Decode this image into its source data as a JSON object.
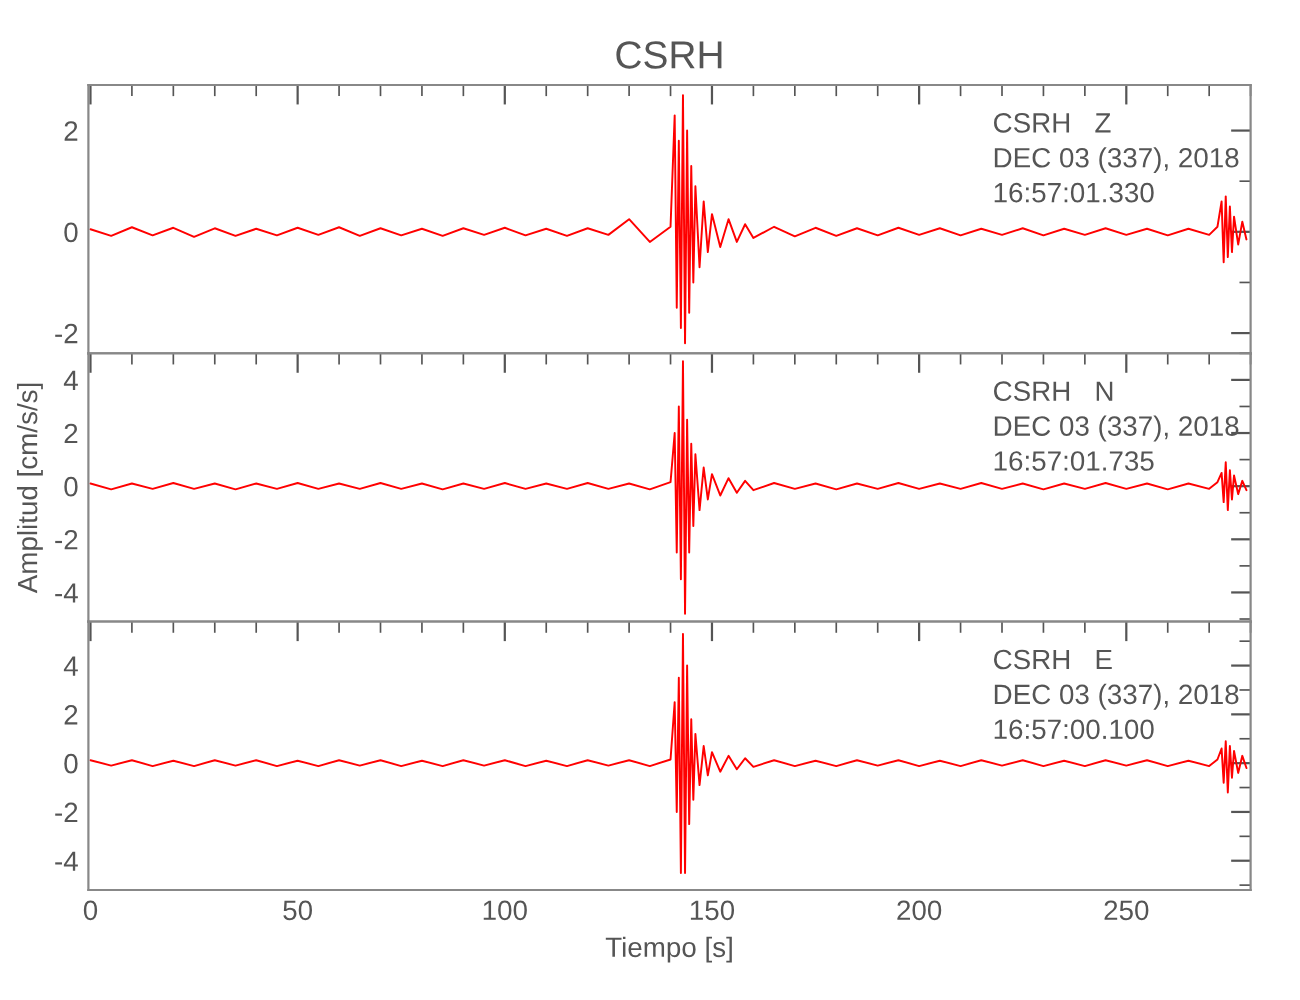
{
  "chart_data": [
    {
      "type": "line",
      "title": "CSRH",
      "xlim": [
        -0.5,
        280
      ],
      "xticks": [
        0,
        50,
        100,
        150,
        200,
        250
      ],
      "ylim": [
        -2.4,
        2.9
      ],
      "yticks": [
        -2,
        0,
        2
      ],
      "tick_labels": "y",
      "annotations": [
        "CSRH   Z",
        "DEC 03 (337), 2018",
        "16:57:01.330"
      ],
      "x": [
        0,
        5,
        10,
        15,
        20,
        25,
        30,
        35,
        40,
        45,
        50,
        55,
        60,
        65,
        70,
        75,
        80,
        85,
        90,
        95,
        100,
        105,
        110,
        115,
        120,
        125,
        130,
        135,
        140,
        141,
        141.5,
        142,
        142.5,
        143,
        143.5,
        144,
        144.5,
        145,
        145.5,
        146,
        147,
        148,
        149,
        150,
        152,
        154,
        156,
        158,
        160,
        165,
        170,
        175,
        180,
        185,
        190,
        195,
        200,
        205,
        210,
        215,
        220,
        225,
        230,
        235,
        240,
        245,
        250,
        255,
        260,
        265,
        270,
        272,
        273,
        273.5,
        274,
        274.5,
        275,
        275.5,
        276,
        277,
        278,
        279
      ],
      "series": [
        {
          "color": "#ff0000",
          "values": [
            0.05,
            -0.08,
            0.09,
            -0.07,
            0.08,
            -0.1,
            0.07,
            -0.08,
            0.06,
            -0.07,
            0.08,
            -0.06,
            0.09,
            -0.08,
            0.07,
            -0.07,
            0.06,
            -0.08,
            0.07,
            -0.06,
            0.08,
            -0.07,
            0.06,
            -0.08,
            0.07,
            -0.06,
            0.25,
            -0.2,
            0.1,
            2.3,
            -1.5,
            1.8,
            -1.9,
            2.7,
            -2.2,
            2.0,
            -1.6,
            1.3,
            -1.0,
            0.9,
            -0.7,
            0.6,
            -0.4,
            0.35,
            -0.3,
            0.25,
            -0.2,
            0.15,
            -0.12,
            0.1,
            -0.09,
            0.08,
            -0.08,
            0.07,
            -0.07,
            0.08,
            -0.06,
            0.07,
            -0.07,
            0.06,
            -0.06,
            0.07,
            -0.07,
            0.06,
            -0.06,
            0.07,
            -0.06,
            0.06,
            -0.07,
            0.06,
            -0.06,
            0.1,
            0.6,
            -0.6,
            0.7,
            -0.5,
            0.5,
            -0.4,
            0.3,
            -0.25,
            0.2,
            -0.15
          ]
        }
      ]
    },
    {
      "type": "line",
      "ylabel": "Amplitud [cm/s/s]",
      "xlim": [
        -0.5,
        280
      ],
      "xticks": [
        0,
        50,
        100,
        150,
        200,
        250
      ],
      "ylim": [
        -5.1,
        5.0
      ],
      "yticks": [
        -4,
        -2,
        0,
        2,
        4
      ],
      "tick_labels": "y",
      "annotations": [
        "CSRH   N",
        "DEC 03 (337), 2018",
        "16:57:01.735"
      ],
      "x": [
        0,
        5,
        10,
        15,
        20,
        25,
        30,
        35,
        40,
        45,
        50,
        55,
        60,
        65,
        70,
        75,
        80,
        85,
        90,
        95,
        100,
        105,
        110,
        115,
        120,
        125,
        130,
        135,
        140,
        141,
        141.5,
        142,
        142.5,
        143,
        143.5,
        144,
        144.5,
        145,
        145.5,
        146,
        147,
        148,
        149,
        150,
        152,
        154,
        156,
        158,
        160,
        165,
        170,
        175,
        180,
        185,
        190,
        195,
        200,
        205,
        210,
        215,
        220,
        225,
        230,
        235,
        240,
        245,
        250,
        255,
        260,
        265,
        270,
        272,
        273,
        273.5,
        274,
        274.5,
        275,
        275.5,
        276,
        277,
        278,
        279
      ],
      "series": [
        {
          "color": "#ff0000",
          "values": [
            0.1,
            -0.12,
            0.1,
            -0.1,
            0.12,
            -0.1,
            0.1,
            -0.12,
            0.1,
            -0.1,
            0.12,
            -0.1,
            0.1,
            -0.1,
            0.12,
            -0.1,
            0.1,
            -0.12,
            0.1,
            -0.1,
            0.12,
            -0.1,
            0.1,
            -0.1,
            0.12,
            -0.1,
            0.1,
            -0.12,
            0.15,
            2.0,
            -2.5,
            3.0,
            -3.5,
            4.7,
            -4.8,
            2.5,
            -2.5,
            1.6,
            -1.5,
            1.2,
            -0.9,
            0.7,
            -0.5,
            0.45,
            -0.35,
            0.3,
            -0.25,
            0.2,
            -0.15,
            0.12,
            -0.1,
            0.1,
            -0.12,
            0.1,
            -0.1,
            0.12,
            -0.1,
            0.1,
            -0.1,
            0.12,
            -0.1,
            0.1,
            -0.12,
            0.1,
            -0.1,
            0.12,
            -0.1,
            0.1,
            -0.12,
            0.1,
            -0.1,
            0.15,
            0.5,
            -0.6,
            0.9,
            -0.9,
            0.6,
            -0.5,
            0.4,
            -0.3,
            0.2,
            -0.15
          ]
        }
      ]
    },
    {
      "type": "line",
      "xlabel": "Tiempo [s]",
      "xlim": [
        -0.5,
        280
      ],
      "xticks": [
        0,
        50,
        100,
        150,
        200,
        250
      ],
      "ylim": [
        -5.2,
        5.8
      ],
      "yticks": [
        -4,
        -2,
        0,
        2,
        4
      ],
      "annotations": [
        "CSRH   E",
        "DEC 03 (337), 2018",
        "16:57:00.100"
      ],
      "x": [
        0,
        5,
        10,
        15,
        20,
        25,
        30,
        35,
        40,
        45,
        50,
        55,
        60,
        65,
        70,
        75,
        80,
        85,
        90,
        95,
        100,
        105,
        110,
        115,
        120,
        125,
        130,
        135,
        140,
        141,
        141.5,
        142,
        142.5,
        143,
        143.5,
        144,
        144.5,
        145,
        145.5,
        146,
        147,
        148,
        149,
        150,
        152,
        154,
        156,
        158,
        160,
        165,
        170,
        175,
        180,
        185,
        190,
        195,
        200,
        205,
        210,
        215,
        220,
        225,
        230,
        235,
        240,
        245,
        250,
        255,
        260,
        265,
        270,
        272,
        273,
        273.5,
        274,
        274.5,
        275,
        275.5,
        276,
        277,
        278,
        279
      ],
      "series": [
        {
          "color": "#ff0000",
          "values": [
            0.12,
            -0.1,
            0.12,
            -0.12,
            0.1,
            -0.12,
            0.12,
            -0.1,
            0.12,
            -0.12,
            0.1,
            -0.12,
            0.12,
            -0.1,
            0.12,
            -0.12,
            0.1,
            -0.12,
            0.12,
            -0.1,
            0.12,
            -0.12,
            0.1,
            -0.12,
            0.12,
            -0.1,
            0.12,
            -0.12,
            0.15,
            2.5,
            -2.0,
            3.5,
            -4.5,
            5.3,
            -4.5,
            4.0,
            -2.5,
            1.8,
            -1.5,
            1.2,
            -0.9,
            0.7,
            -0.5,
            0.45,
            -0.35,
            0.3,
            -0.25,
            0.2,
            -0.15,
            0.12,
            -0.12,
            0.1,
            -0.12,
            0.12,
            -0.1,
            0.12,
            -0.12,
            0.1,
            -0.12,
            0.12,
            -0.1,
            0.12,
            -0.12,
            0.1,
            -0.12,
            0.12,
            -0.1,
            0.12,
            -0.12,
            0.1,
            -0.12,
            0.15,
            0.6,
            -0.8,
            0.9,
            -1.2,
            0.7,
            -0.6,
            0.5,
            -0.4,
            0.3,
            -0.2
          ]
        }
      ]
    }
  ]
}
